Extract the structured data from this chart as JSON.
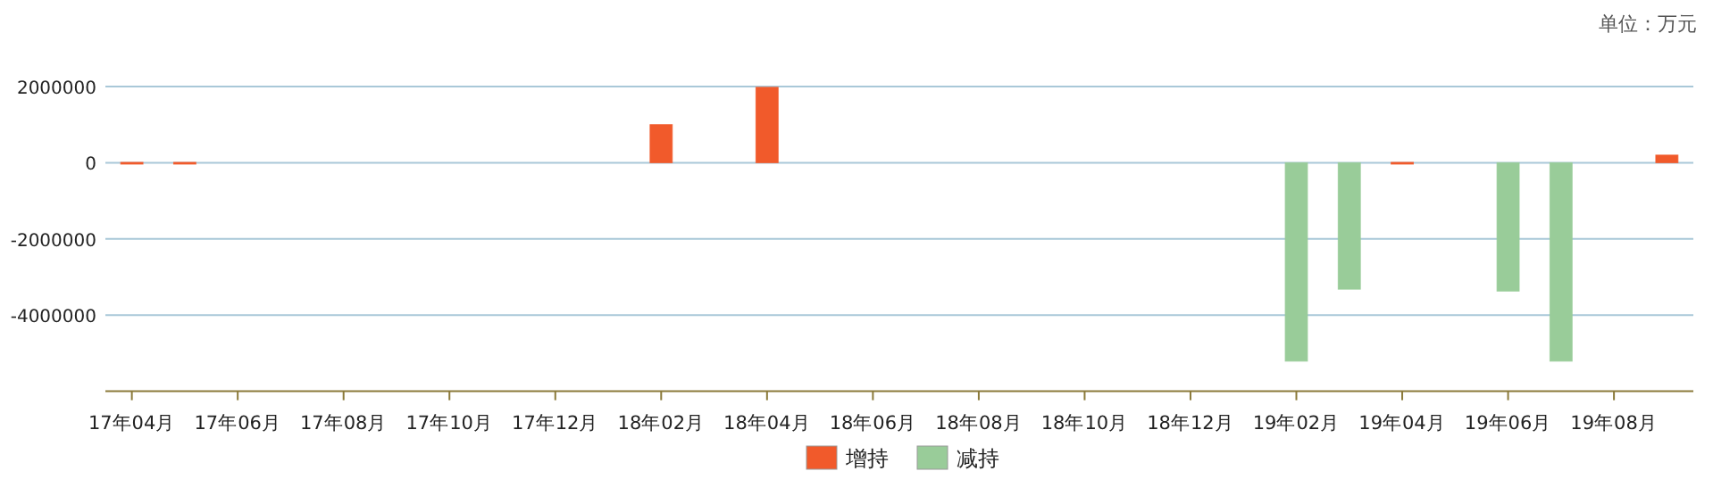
{
  "chart_data": {
    "type": "bar",
    "categories": [
      "17年04月",
      null,
      "17年06月",
      null,
      "17年08月",
      null,
      "17年10月",
      null,
      "17年12月",
      null,
      "18年02月",
      null,
      "18年04月",
      null,
      "18年06月",
      null,
      "18年08月",
      null,
      "18年10月",
      null,
      "18年12月",
      null,
      "19年02月",
      null,
      "19年04月",
      null,
      "19年06月",
      null,
      "19年08月",
      null
    ],
    "series": [
      {
        "name": "增持",
        "color": "#f15a2b",
        "values": [
          10000,
          10000,
          null,
          null,
          null,
          null,
          null,
          null,
          null,
          null,
          1000000,
          null,
          1980000,
          null,
          null,
          null,
          null,
          null,
          null,
          null,
          null,
          null,
          null,
          null,
          10000,
          null,
          null,
          null,
          null,
          200000
        ]
      },
      {
        "name": "减持",
        "color": "#99cc99",
        "values": [
          null,
          null,
          null,
          null,
          null,
          null,
          null,
          null,
          null,
          null,
          null,
          null,
          null,
          null,
          null,
          null,
          null,
          null,
          null,
          null,
          null,
          null,
          -5210000,
          -3320000,
          null,
          null,
          -3370000,
          -5210000,
          null,
          null
        ]
      }
    ],
    "ylim": [
      -6000000,
      2000000
    ],
    "yticks": [
      2000000,
      0,
      -2000000,
      -4000000
    ],
    "grid": "y",
    "legend": "bottom",
    "annotations": [
      "单位：万元"
    ]
  }
}
